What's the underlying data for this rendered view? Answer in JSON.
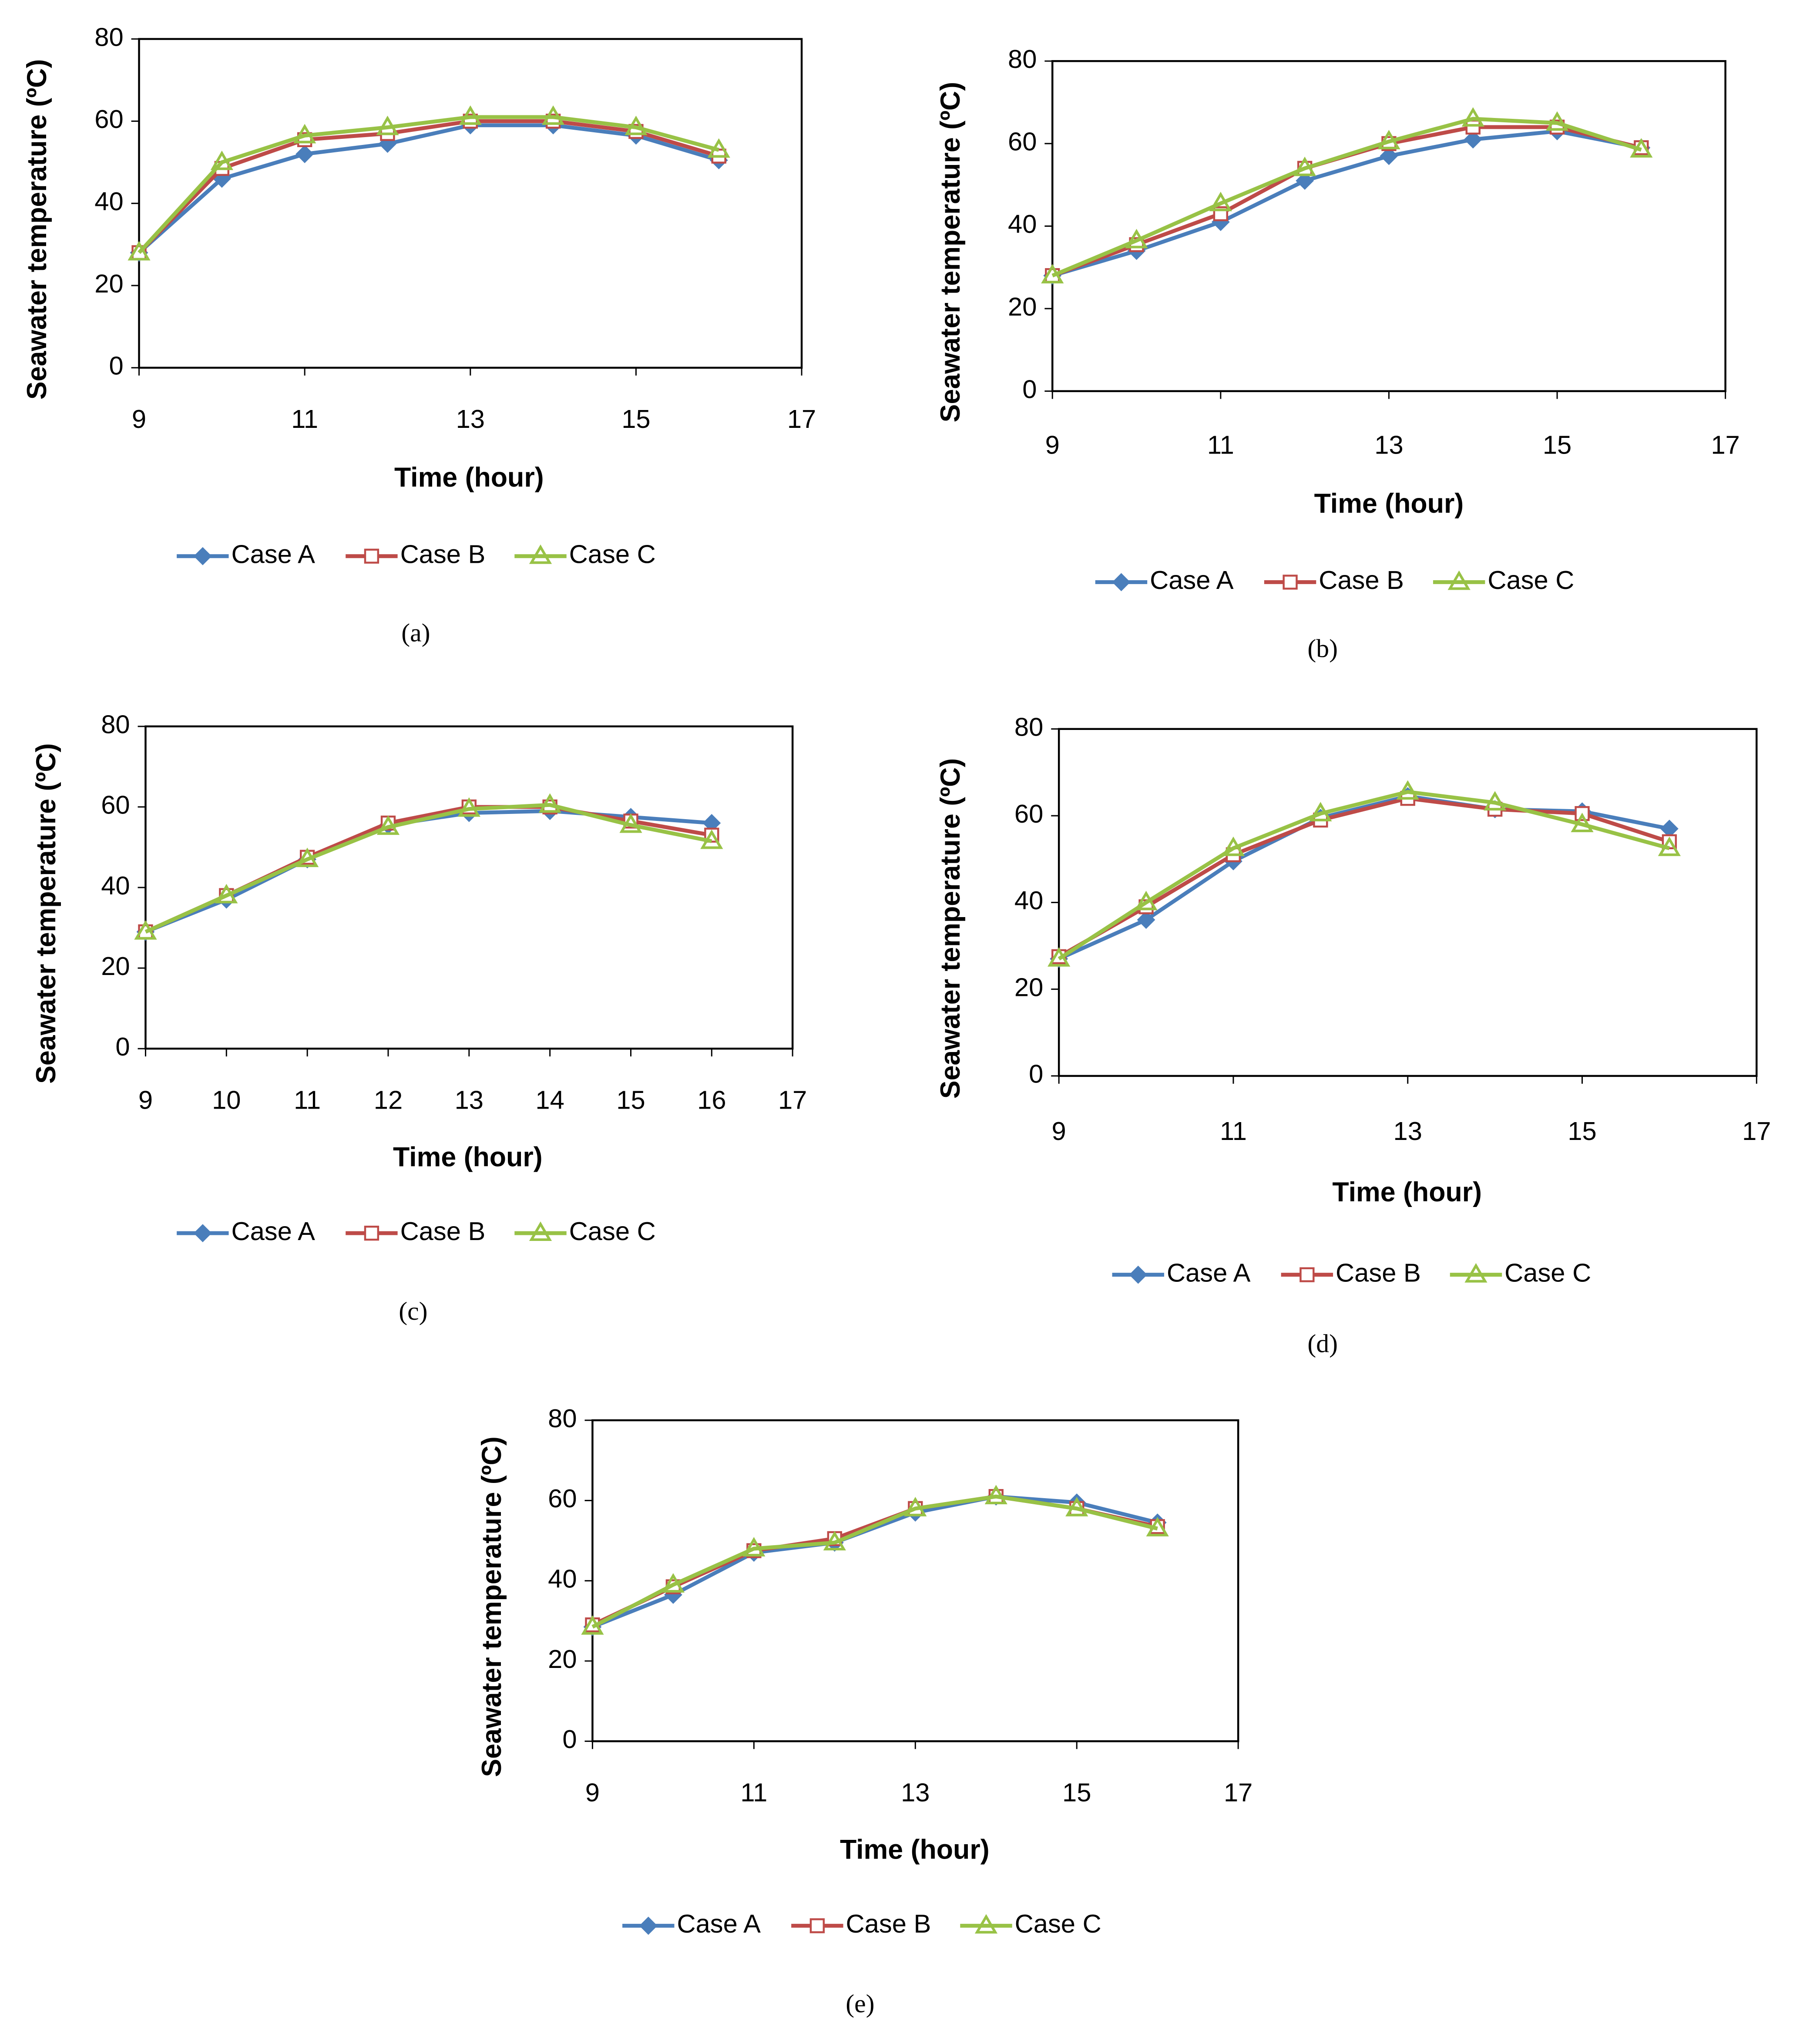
{
  "chart_data": [
    {
      "type": "line",
      "label": "(a)",
      "x_label": "Time (hour)",
      "y_label": "Seawater temperature (ºC)",
      "x": [
        9,
        10,
        11,
        12,
        13,
        14,
        15,
        16
      ],
      "xlim": [
        9,
        17
      ],
      "xticks": [
        9,
        11,
        13,
        15,
        17
      ],
      "ylim": [
        0,
        80
      ],
      "yticks": [
        0,
        20,
        40,
        60,
        80
      ],
      "series": [
        {
          "name": "Case A",
          "color": "#4a7ebb",
          "marker": "diamond",
          "values": [
            28,
            46,
            52,
            54.5,
            59,
            59,
            56.5,
            50.5
          ]
        },
        {
          "name": "Case B",
          "color": "#be4b48",
          "marker": "square",
          "values": [
            28,
            48.5,
            55.5,
            57,
            60,
            60,
            57.5,
            51.5
          ]
        },
        {
          "name": "Case C",
          "color": "#98c246",
          "marker": "triangle",
          "values": [
            28,
            50,
            56.5,
            58.5,
            61,
            61,
            58.5,
            53
          ]
        }
      ]
    },
    {
      "type": "line",
      "label": "(b)",
      "x_label": "Time (hour)",
      "y_label": "Seawater temperature (ºC)",
      "x": [
        9,
        10,
        11,
        12,
        13,
        14,
        15,
        16
      ],
      "xlim": [
        9,
        17
      ],
      "xticks": [
        9,
        11,
        13,
        15,
        17
      ],
      "ylim": [
        0,
        80
      ],
      "yticks": [
        0,
        20,
        40,
        60,
        80
      ],
      "series": [
        {
          "name": "Case A",
          "color": "#4a7ebb",
          "marker": "diamond",
          "values": [
            28,
            34,
            41,
            51,
            57,
            61,
            63,
            59
          ]
        },
        {
          "name": "Case B",
          "color": "#be4b48",
          "marker": "square",
          "values": [
            28,
            35.5,
            43,
            54,
            60,
            64,
            64,
            59
          ]
        },
        {
          "name": "Case C",
          "color": "#98c246",
          "marker": "triangle",
          "values": [
            28,
            36.5,
            45.5,
            54,
            60.5,
            66,
            65,
            58.5
          ]
        }
      ]
    },
    {
      "type": "line",
      "label": "(c)",
      "x_label": "Time (hour)",
      "y_label": "Seawater temperature (ºC)",
      "x": [
        9,
        10,
        11,
        12,
        13,
        14,
        15,
        16
      ],
      "xlim": [
        9,
        17
      ],
      "xticks": [
        9,
        10,
        11,
        12,
        13,
        14,
        15,
        16,
        17
      ],
      "ylim": [
        0,
        80
      ],
      "yticks": [
        0,
        20,
        40,
        60,
        80
      ],
      "series": [
        {
          "name": "Case A",
          "color": "#4a7ebb",
          "marker": "diamond",
          "values": [
            29,
            37,
            47,
            55.5,
            58.5,
            59,
            57.5,
            56
          ]
        },
        {
          "name": "Case B",
          "color": "#be4b48",
          "marker": "square",
          "values": [
            29,
            38,
            47.5,
            56,
            60,
            60,
            56.5,
            53
          ]
        },
        {
          "name": "Case C",
          "color": "#98c246",
          "marker": "triangle",
          "values": [
            29,
            38,
            47,
            55,
            59.5,
            60.5,
            55.5,
            51.5
          ]
        }
      ]
    },
    {
      "type": "line",
      "label": "(d)",
      "x_label": "Time (hour)",
      "y_label": "Seawater temperature (ºC)",
      "x": [
        9,
        10,
        11,
        12,
        13,
        14,
        15,
        16
      ],
      "xlim": [
        9,
        17
      ],
      "xticks": [
        9,
        11,
        13,
        15,
        17
      ],
      "ylim": [
        0,
        80
      ],
      "yticks": [
        0,
        20,
        40,
        60,
        80
      ],
      "series": [
        {
          "name": "Case A",
          "color": "#4a7ebb",
          "marker": "diamond",
          "values": [
            27,
            36,
            49.5,
            59.5,
            64.5,
            61.5,
            61,
            57
          ]
        },
        {
          "name": "Case B",
          "color": "#be4b48",
          "marker": "square",
          "values": [
            27.5,
            39,
            51,
            59,
            64,
            61.5,
            60.5,
            54
          ]
        },
        {
          "name": "Case C",
          "color": "#98c246",
          "marker": "triangle",
          "values": [
            27,
            40,
            52.5,
            60.5,
            65.5,
            63,
            58,
            52.5
          ]
        }
      ]
    },
    {
      "type": "line",
      "label": "(e)",
      "x_label": "Time (hour)",
      "y_label": "Seawater temperature (ºC)",
      "x": [
        9,
        10,
        11,
        12,
        13,
        14,
        15,
        16
      ],
      "xlim": [
        9,
        17
      ],
      "xticks": [
        9,
        11,
        13,
        15,
        17
      ],
      "ylim": [
        0,
        80
      ],
      "yticks": [
        0,
        20,
        40,
        60,
        80
      ],
      "series": [
        {
          "name": "Case A",
          "color": "#4a7ebb",
          "marker": "diamond",
          "values": [
            28.5,
            36.5,
            47,
            49.5,
            57,
            61,
            59.5,
            54.5
          ]
        },
        {
          "name": "Case B",
          "color": "#be4b48",
          "marker": "square",
          "values": [
            29,
            38.5,
            47.5,
            50.5,
            58,
            61,
            58,
            53.5
          ]
        },
        {
          "name": "Case C",
          "color": "#98c246",
          "marker": "triangle",
          "values": [
            28.5,
            39,
            48,
            49.5,
            58,
            61,
            58,
            53
          ]
        }
      ]
    }
  ]
}
